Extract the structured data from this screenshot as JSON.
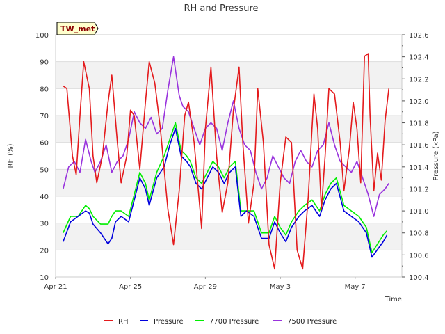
{
  "chart_data": {
    "type": "line",
    "title": "RH and Pressure",
    "badge": "TW_met",
    "xlabel": "Time",
    "ylabel_left": "RH (%)",
    "ylabel_right": "Pressure (kPa)",
    "x_ticks": [
      {
        "day": 0,
        "label": "Apr 21"
      },
      {
        "day": 4,
        "label": "Apr 25"
      },
      {
        "day": 8,
        "label": "Apr 29"
      },
      {
        "day": 12,
        "label": "May 3"
      },
      {
        "day": 16,
        "label": "May 7"
      }
    ],
    "xlim": [
      0,
      18.5
    ],
    "ylim_left": [
      10,
      100
    ],
    "ylim_right": [
      100.4,
      102.6
    ],
    "left_ticks": [
      10,
      20,
      30,
      40,
      50,
      60,
      70,
      80,
      90,
      100
    ],
    "right_ticks": [
      "100.4",
      "100.6",
      "100.8",
      "101.0",
      "101.2",
      "101.4",
      "101.6",
      "101.8",
      "102.0",
      "102.2",
      "102.4",
      "102.6"
    ],
    "grid": true,
    "legend_position": "bottom",
    "series": [
      {
        "name": "RH",
        "axis": "left",
        "color": "#e41a1c",
        "x": [
          0.4,
          0.6,
          0.9,
          1.1,
          1.3,
          1.5,
          1.8,
          2.0,
          2.2,
          2.5,
          2.8,
          3.0,
          3.3,
          3.5,
          3.8,
          4.0,
          4.2,
          4.5,
          4.8,
          5.0,
          5.3,
          5.6,
          5.8,
          6.0,
          6.3,
          6.6,
          6.9,
          7.1,
          7.4,
          7.8,
          8.0,
          8.3,
          8.6,
          8.9,
          9.2,
          9.5,
          9.8,
          10.0,
          10.3,
          10.6,
          10.8,
          11.1,
          11.4,
          11.7,
          12.0,
          12.3,
          12.6,
          12.9,
          13.2,
          13.5,
          13.8,
          14.0,
          14.2,
          14.4,
          14.6,
          14.9,
          15.2,
          15.4,
          15.7,
          15.9,
          16.1,
          16.3,
          16.5,
          16.7,
          16.8,
          17.0,
          17.2,
          17.4,
          17.6,
          17.8
        ],
        "values": [
          81,
          80,
          55,
          48,
          70,
          90,
          80,
          55,
          45,
          55,
          75,
          85,
          60,
          45,
          55,
          72,
          70,
          50,
          75,
          90,
          82,
          65,
          50,
          35,
          22,
          42,
          70,
          75,
          60,
          28,
          65,
          88,
          55,
          34,
          45,
          72,
          88,
          60,
          30,
          45,
          80,
          60,
          22,
          13,
          45,
          62,
          60,
          20,
          13,
          40,
          78,
          65,
          35,
          55,
          80,
          78,
          60,
          42,
          58,
          75,
          65,
          45,
          92,
          93,
          70,
          42,
          56,
          46,
          68,
          80
        ]
      },
      {
        "name": "Pressure",
        "axis": "right",
        "color": "#0000dd",
        "x": [
          0.4,
          0.8,
          1.2,
          1.6,
          1.8,
          2.0,
          2.4,
          2.8,
          3.0,
          3.2,
          3.5,
          3.9,
          4.2,
          4.5,
          4.8,
          5.0,
          5.4,
          5.8,
          6.1,
          6.4,
          6.7,
          7.0,
          7.2,
          7.5,
          7.8,
          8.1,
          8.4,
          8.7,
          9.0,
          9.3,
          9.6,
          9.9,
          10.2,
          10.6,
          11.0,
          11.4,
          11.7,
          12.0,
          12.3,
          12.6,
          13.0,
          13.3,
          13.7,
          14.1,
          14.4,
          14.7,
          15.0,
          15.4,
          15.8,
          16.2,
          16.6,
          16.9,
          17.2,
          17.5,
          17.7
        ],
        "values": [
          100.72,
          100.9,
          100.95,
          101.0,
          100.98,
          100.88,
          100.8,
          100.7,
          100.75,
          100.9,
          100.95,
          100.9,
          101.1,
          101.3,
          101.2,
          101.05,
          101.3,
          101.4,
          101.6,
          101.75,
          101.5,
          101.45,
          101.4,
          101.25,
          101.2,
          101.3,
          101.4,
          101.35,
          101.25,
          101.35,
          101.4,
          100.95,
          101.0,
          100.95,
          100.75,
          100.75,
          100.9,
          100.8,
          100.72,
          100.85,
          100.95,
          101.0,
          101.05,
          100.95,
          101.1,
          101.2,
          101.25,
          101.0,
          100.95,
          100.9,
          100.8,
          100.58,
          100.65,
          100.72,
          100.78
        ]
      },
      {
        "name": "7700 Pressure",
        "axis": "right",
        "color": "#00ee00",
        "x": [
          0.4,
          0.8,
          1.2,
          1.6,
          1.8,
          2.0,
          2.4,
          2.8,
          3.0,
          3.2,
          3.5,
          3.9,
          4.2,
          4.5,
          4.8,
          5.0,
          5.4,
          5.8,
          6.1,
          6.4,
          6.7,
          7.0,
          7.2,
          7.5,
          7.8,
          8.1,
          8.4,
          8.7,
          9.0,
          9.3,
          9.6,
          9.9,
          10.2,
          10.6,
          11.0,
          11.4,
          11.7,
          12.0,
          12.3,
          12.6,
          13.0,
          13.3,
          13.7,
          14.1,
          14.4,
          14.7,
          15.0,
          15.4,
          15.8,
          16.2,
          16.6,
          16.9,
          17.2,
          17.5,
          17.7
        ],
        "values": [
          100.8,
          100.95,
          100.95,
          101.05,
          101.02,
          100.95,
          100.88,
          100.88,
          100.95,
          101.0,
          101.0,
          100.95,
          101.15,
          101.35,
          101.25,
          101.1,
          101.35,
          101.5,
          101.65,
          101.8,
          101.55,
          101.5,
          101.45,
          101.3,
          101.25,
          101.35,
          101.45,
          101.4,
          101.3,
          101.4,
          101.45,
          101.0,
          101.0,
          101.0,
          100.8,
          100.8,
          100.95,
          100.85,
          100.78,
          100.9,
          101.0,
          101.05,
          101.1,
          101.0,
          101.15,
          101.25,
          101.3,
          101.05,
          101.0,
          100.95,
          100.85,
          100.62,
          100.7,
          100.78,
          100.82
        ]
      },
      {
        "name": "7500 Pressure",
        "axis": "right",
        "color": "#9933dd",
        "x": [
          0.4,
          0.7,
          1.0,
          1.3,
          1.6,
          1.9,
          2.1,
          2.4,
          2.7,
          3.0,
          3.3,
          3.6,
          3.9,
          4.2,
          4.5,
          4.8,
          5.1,
          5.4,
          5.7,
          6.0,
          6.3,
          6.6,
          6.8,
          7.1,
          7.4,
          7.7,
          8.0,
          8.3,
          8.6,
          8.9,
          9.2,
          9.5,
          9.8,
          10.1,
          10.4,
          10.7,
          11.0,
          11.3,
          11.6,
          11.9,
          12.2,
          12.5,
          12.8,
          13.1,
          13.4,
          13.7,
          14.0,
          14.3,
          14.6,
          14.9,
          15.2,
          15.5,
          15.8,
          16.1,
          16.4,
          16.7,
          17.0,
          17.3,
          17.6,
          17.8
        ],
        "values": [
          101.2,
          101.4,
          101.45,
          101.35,
          101.65,
          101.45,
          101.35,
          101.45,
          101.6,
          101.35,
          101.45,
          101.5,
          101.65,
          101.9,
          101.8,
          101.75,
          101.85,
          101.7,
          101.75,
          102.1,
          102.4,
          102.05,
          101.95,
          101.9,
          101.75,
          101.6,
          101.75,
          101.8,
          101.75,
          101.55,
          101.8,
          102.0,
          101.75,
          101.6,
          101.55,
          101.35,
          101.2,
          101.3,
          101.5,
          101.4,
          101.3,
          101.25,
          101.45,
          101.55,
          101.45,
          101.4,
          101.55,
          101.6,
          101.8,
          101.6,
          101.45,
          101.4,
          101.35,
          101.45,
          101.3,
          101.15,
          100.95,
          101.15,
          101.2,
          101.25
        ]
      }
    ]
  }
}
